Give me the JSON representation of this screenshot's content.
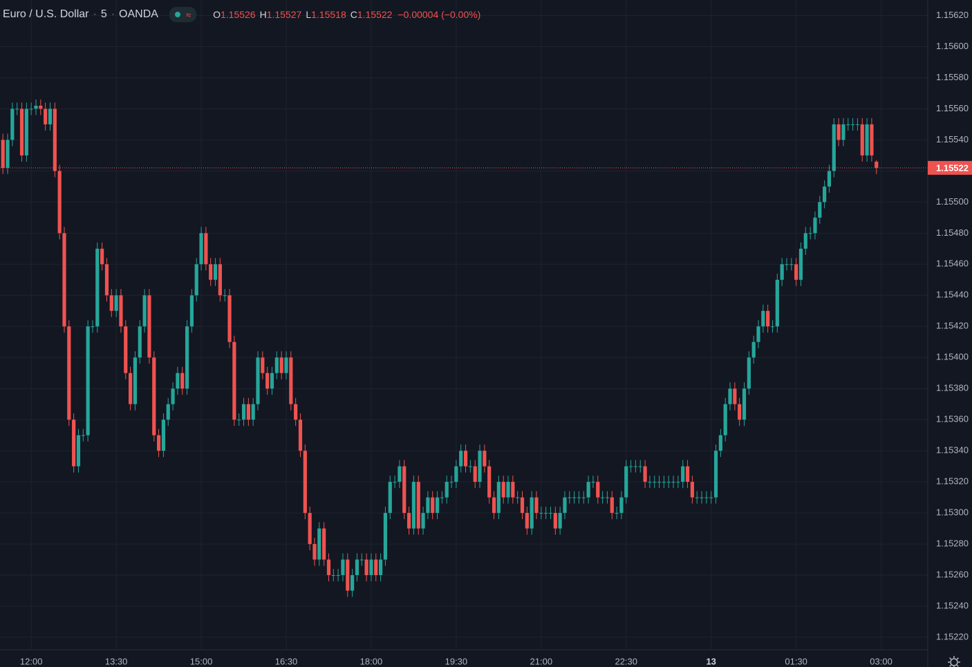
{
  "header": {
    "symbol": "Euro / U.S. Dollar",
    "interval": "5",
    "source": "OANDA",
    "open_label": "O",
    "high_label": "H",
    "low_label": "L",
    "close_label": "C",
    "change": "−0.00004 (−0.00%)"
  },
  "chart_data": {
    "type": "candlestick",
    "up_color": "#26a69a",
    "down_color": "#ef5350",
    "grid": true,
    "categories": [
      "11:30",
      "11:35",
      "11:40",
      "11:45",
      "11:50",
      "11:55",
      "12:00",
      "12:05",
      "12:10",
      "12:15",
      "12:20",
      "12:25",
      "12:30",
      "12:35",
      "12:40",
      "12:45",
      "12:50",
      "12:55",
      "13:00",
      "13:05",
      "13:10",
      "13:15",
      "13:20",
      "13:25",
      "13:30",
      "13:35",
      "13:40",
      "13:45",
      "13:50",
      "13:55",
      "14:00",
      "14:05",
      "14:10",
      "14:15",
      "14:20",
      "14:25",
      "14:30",
      "14:35",
      "14:40",
      "14:45",
      "14:50",
      "14:55",
      "15:00",
      "15:05",
      "15:10",
      "15:15",
      "15:20",
      "15:25",
      "15:30",
      "15:35",
      "15:40",
      "15:45",
      "15:50",
      "15:55",
      "16:00",
      "16:05",
      "16:10",
      "16:15",
      "16:20",
      "16:25",
      "16:30",
      "16:35",
      "16:40",
      "16:45",
      "16:50",
      "16:55",
      "17:00",
      "17:05",
      "17:10",
      "17:15",
      "17:20",
      "17:25",
      "17:30",
      "17:35",
      "17:40",
      "17:45",
      "17:50",
      "17:55",
      "18:00",
      "18:05",
      "18:10",
      "18:15",
      "18:20",
      "18:25",
      "18:30",
      "18:35",
      "18:40",
      "18:45",
      "18:50",
      "18:55",
      "19:00",
      "19:05",
      "19:10",
      "19:15",
      "19:20",
      "19:25",
      "19:30",
      "19:35",
      "19:40",
      "19:45",
      "19:50",
      "19:55",
      "20:00",
      "20:05",
      "20:10",
      "20:15",
      "20:20",
      "20:25",
      "20:30",
      "20:35",
      "20:40",
      "20:45",
      "20:50",
      "20:55",
      "21:00",
      "21:05",
      "21:10",
      "21:15",
      "21:20",
      "21:25",
      "21:30",
      "21:35",
      "21:40",
      "21:45",
      "21:50",
      "21:55",
      "22:00",
      "22:05",
      "22:10",
      "22:15",
      "22:20",
      "22:25",
      "22:30",
      "22:35",
      "22:40",
      "22:45",
      "22:50",
      "22:55",
      "23:00",
      "23:05",
      "23:10",
      "23:15",
      "23:20",
      "23:25",
      "23:30",
      "23:35",
      "23:40",
      "23:45",
      "23:50",
      "23:55",
      "00:00",
      "00:05",
      "00:10",
      "00:15",
      "00:20",
      "00:25",
      "00:30",
      "00:35",
      "00:40",
      "00:45",
      "00:50",
      "00:55",
      "01:00",
      "01:05",
      "01:10",
      "01:15",
      "01:20",
      "01:25",
      "01:30",
      "01:35",
      "01:40",
      "01:45",
      "01:50",
      "01:55",
      "02:00",
      "02:05",
      "02:10",
      "02:15",
      "02:20",
      "02:25",
      "02:30",
      "02:35",
      "02:40",
      "02:45",
      "02:50",
      "02:55"
    ],
    "open": [
      1.1554,
      1.15522,
      1.1554,
      1.1556,
      1.1556,
      1.1553,
      1.1556,
      1.1556,
      1.15562,
      1.1556,
      1.1555,
      1.1556,
      1.1552,
      1.1548,
      1.1542,
      1.1536,
      1.1533,
      1.1535,
      1.1535,
      1.1542,
      1.1542,
      1.1547,
      1.1546,
      1.1544,
      1.1543,
      1.1544,
      1.1542,
      1.1539,
      1.1537,
      1.154,
      1.1542,
      1.1544,
      1.154,
      1.1535,
      1.1534,
      1.1536,
      1.1537,
      1.1538,
      1.1539,
      1.1538,
      1.1542,
      1.1544,
      1.1546,
      1.1548,
      1.1546,
      1.1545,
      1.1546,
      1.1544,
      1.1544,
      1.1541,
      1.1536,
      1.1536,
      1.1537,
      1.1536,
      1.1537,
      1.154,
      1.1539,
      1.1538,
      1.1539,
      1.154,
      1.1539,
      1.154,
      1.1537,
      1.1536,
      1.1534,
      1.153,
      1.1528,
      1.1527,
      1.1529,
      1.1527,
      1.1526,
      1.1526,
      1.1526,
      1.1527,
      1.1525,
      1.1526,
      1.1527,
      1.1527,
      1.1526,
      1.1527,
      1.1526,
      1.1527,
      1.153,
      1.1532,
      1.1532,
      1.1533,
      1.153,
      1.1529,
      1.1532,
      1.1529,
      1.153,
      1.1531,
      1.153,
      1.1531,
      1.1531,
      1.1532,
      1.1532,
      1.1533,
      1.1534,
      1.1533,
      1.1533,
      1.1532,
      1.1534,
      1.1533,
      1.1531,
      1.153,
      1.1532,
      1.1531,
      1.1532,
      1.1531,
      1.1531,
      1.153,
      1.1529,
      1.1531,
      1.153,
      1.153,
      1.153,
      1.153,
      1.1529,
      1.153,
      1.1531,
      1.1531,
      1.1531,
      1.1531,
      1.1531,
      1.1532,
      1.1532,
      1.1531,
      1.1531,
      1.1531,
      1.153,
      1.153,
      1.1531,
      1.1533,
      1.1533,
      1.1533,
      1.1533,
      1.1532,
      1.1532,
      1.1532,
      1.1532,
      1.1532,
      1.1532,
      1.1532,
      1.1532,
      1.1533,
      1.1532,
      1.1531,
      1.1531,
      1.1531,
      1.1531,
      1.1531,
      1.1534,
      1.1535,
      1.1537,
      1.1538,
      1.1537,
      1.1536,
      1.1538,
      1.154,
      1.1541,
      1.1542,
      1.1543,
      1.1542,
      1.1542,
      1.1545,
      1.1546,
      1.1546,
      1.1546,
      1.1545,
      1.1547,
      1.1548,
      1.1548,
      1.1549,
      1.155,
      1.1551,
      1.1552,
      1.1555,
      1.1554,
      1.1555,
      1.1555,
      1.1555,
      1.1555,
      1.1553,
      1.1555,
      1.15526
    ],
    "high": [
      1.15544,
      1.15544,
      1.15564,
      1.15564,
      1.15564,
      1.15564,
      1.15564,
      1.15566,
      1.15566,
      1.15564,
      1.15564,
      1.15564,
      1.15524,
      1.15484,
      1.15424,
      1.15364,
      1.15354,
      1.15354,
      1.15424,
      1.15424,
      1.15474,
      1.15474,
      1.15464,
      1.15444,
      1.15444,
      1.15444,
      1.15424,
      1.15394,
      1.15404,
      1.15424,
      1.15444,
      1.15444,
      1.15404,
      1.15354,
      1.15364,
      1.15374,
      1.15384,
      1.15394,
      1.15394,
      1.15424,
      1.15444,
      1.15464,
      1.15484,
      1.15484,
      1.15464,
      1.15464,
      1.15464,
      1.15444,
      1.15444,
      1.15414,
      1.15364,
      1.15374,
      1.15374,
      1.15374,
      1.15404,
      1.15404,
      1.15394,
      1.15394,
      1.15404,
      1.15404,
      1.15404,
      1.15404,
      1.15374,
      1.15364,
      1.15344,
      1.15304,
      1.15284,
      1.15294,
      1.15294,
      1.15274,
      1.15264,
      1.15264,
      1.15274,
      1.15274,
      1.15264,
      1.15274,
      1.15274,
      1.15274,
      1.15274,
      1.15274,
      1.15274,
      1.15304,
      1.15324,
      1.15324,
      1.15334,
      1.15334,
      1.15304,
      1.15324,
      1.15324,
      1.15304,
      1.15314,
      1.15314,
      1.15314,
      1.15314,
      1.15324,
      1.15324,
      1.15334,
      1.15344,
      1.15344,
      1.15334,
      1.15334,
      1.15344,
      1.15344,
      1.15334,
      1.15314,
      1.15324,
      1.15324,
      1.15324,
      1.15324,
      1.15314,
      1.15314,
      1.15304,
      1.15314,
      1.15314,
      1.15304,
      1.15304,
      1.15304,
      1.15304,
      1.15304,
      1.15314,
      1.15314,
      1.15314,
      1.15314,
      1.15314,
      1.15324,
      1.15324,
      1.15324,
      1.15314,
      1.15314,
      1.15314,
      1.15304,
      1.15314,
      1.15334,
      1.15334,
      1.15334,
      1.15334,
      1.15334,
      1.15324,
      1.15324,
      1.15324,
      1.15324,
      1.15324,
      1.15324,
      1.15324,
      1.15334,
      1.15334,
      1.15324,
      1.15314,
      1.15314,
      1.15314,
      1.15314,
      1.15344,
      1.15354,
      1.15374,
      1.15384,
      1.15384,
      1.15374,
      1.15384,
      1.15404,
      1.15414,
      1.15424,
      1.15434,
      1.15434,
      1.15424,
      1.15454,
      1.15464,
      1.15464,
      1.15464,
      1.15464,
      1.15474,
      1.15484,
      1.15484,
      1.15494,
      1.15504,
      1.15514,
      1.15524,
      1.15554,
      1.15554,
      1.15554,
      1.15554,
      1.15554,
      1.15554,
      1.15554,
      1.15554,
      1.15554,
      1.15527
    ],
    "low": [
      1.15518,
      1.15518,
      1.15536,
      1.15556,
      1.15526,
      1.15526,
      1.15556,
      1.15556,
      1.15556,
      1.15546,
      1.15546,
      1.15516,
      1.15476,
      1.15416,
      1.15356,
      1.15326,
      1.15326,
      1.15346,
      1.15346,
      1.15416,
      1.15416,
      1.15456,
      1.15436,
      1.15426,
      1.15426,
      1.15416,
      1.15386,
      1.15366,
      1.15366,
      1.15396,
      1.15416,
      1.15396,
      1.15346,
      1.15336,
      1.15336,
      1.15356,
      1.15366,
      1.15376,
      1.15376,
      1.15376,
      1.15416,
      1.15436,
      1.15456,
      1.15456,
      1.15446,
      1.15446,
      1.15436,
      1.15436,
      1.15406,
      1.15356,
      1.15356,
      1.15356,
      1.15356,
      1.15356,
      1.15366,
      1.15386,
      1.15376,
      1.15376,
      1.15386,
      1.15386,
      1.15386,
      1.15366,
      1.15356,
      1.15336,
      1.15296,
      1.15276,
      1.15266,
      1.15266,
      1.15266,
      1.15256,
      1.15256,
      1.15256,
      1.15256,
      1.15246,
      1.15246,
      1.15256,
      1.15266,
      1.15256,
      1.15256,
      1.15256,
      1.15256,
      1.15266,
      1.15296,
      1.15316,
      1.15316,
      1.15296,
      1.15286,
      1.15286,
      1.15286,
      1.15286,
      1.15296,
      1.15296,
      1.15296,
      1.15306,
      1.15306,
      1.15316,
      1.15316,
      1.15326,
      1.15326,
      1.15326,
      1.15316,
      1.15316,
      1.15326,
      1.15306,
      1.15296,
      1.15296,
      1.15306,
      1.15306,
      1.15306,
      1.15306,
      1.15296,
      1.15286,
      1.15286,
      1.15296,
      1.15296,
      1.15296,
      1.15296,
      1.15286,
      1.15286,
      1.15296,
      1.15306,
      1.15306,
      1.15306,
      1.15306,
      1.15306,
      1.15316,
      1.15306,
      1.15306,
      1.15306,
      1.15296,
      1.15296,
      1.15296,
      1.15306,
      1.15326,
      1.15326,
      1.15326,
      1.15316,
      1.15316,
      1.15316,
      1.15316,
      1.15316,
      1.15316,
      1.15316,
      1.15316,
      1.15316,
      1.15316,
      1.15306,
      1.15306,
      1.15306,
      1.15306,
      1.15306,
      1.15306,
      1.15336,
      1.15346,
      1.15366,
      1.15366,
      1.15356,
      1.15356,
      1.15376,
      1.15396,
      1.15406,
      1.15416,
      1.15416,
      1.15416,
      1.15416,
      1.15446,
      1.15456,
      1.15456,
      1.15446,
      1.15446,
      1.15466,
      1.15476,
      1.15476,
      1.15486,
      1.15496,
      1.15506,
      1.15516,
      1.15536,
      1.15536,
      1.15546,
      1.15546,
      1.15546,
      1.15526,
      1.15526,
      1.15526,
      1.15518
    ],
    "close": [
      1.15522,
      1.1554,
      1.1556,
      1.1556,
      1.1553,
      1.1556,
      1.1556,
      1.15562,
      1.1556,
      1.1555,
      1.1556,
      1.1552,
      1.1548,
      1.1542,
      1.1536,
      1.1533,
      1.1535,
      1.1535,
      1.1542,
      1.1542,
      1.1547,
      1.1546,
      1.1544,
      1.1543,
      1.1544,
      1.1542,
      1.1539,
      1.1537,
      1.154,
      1.1542,
      1.1544,
      1.154,
      1.1535,
      1.1534,
      1.1536,
      1.1537,
      1.1538,
      1.1539,
      1.1538,
      1.1542,
      1.1544,
      1.1546,
      1.1548,
      1.1546,
      1.1545,
      1.1546,
      1.1544,
      1.1544,
      1.1541,
      1.1536,
      1.1536,
      1.1537,
      1.1536,
      1.1537,
      1.154,
      1.1539,
      1.1538,
      1.1539,
      1.154,
      1.1539,
      1.154,
      1.1537,
      1.1536,
      1.1534,
      1.153,
      1.1528,
      1.1527,
      1.1529,
      1.1527,
      1.1526,
      1.1526,
      1.1526,
      1.1527,
      1.1525,
      1.1526,
      1.1527,
      1.1527,
      1.1526,
      1.1527,
      1.1526,
      1.1527,
      1.153,
      1.1532,
      1.1532,
      1.1533,
      1.153,
      1.1529,
      1.1532,
      1.1529,
      1.153,
      1.1531,
      1.153,
      1.1531,
      1.1531,
      1.1532,
      1.1532,
      1.1533,
      1.1534,
      1.1533,
      1.1533,
      1.1532,
      1.1534,
      1.1533,
      1.1531,
      1.153,
      1.1532,
      1.1531,
      1.1532,
      1.1531,
      1.1531,
      1.153,
      1.1529,
      1.1531,
      1.153,
      1.153,
      1.153,
      1.153,
      1.1529,
      1.153,
      1.1531,
      1.1531,
      1.1531,
      1.1531,
      1.1531,
      1.1532,
      1.1532,
      1.1531,
      1.1531,
      1.1531,
      1.153,
      1.153,
      1.1531,
      1.1533,
      1.1533,
      1.1533,
      1.1533,
      1.1532,
      1.1532,
      1.1532,
      1.1532,
      1.1532,
      1.1532,
      1.1532,
      1.1532,
      1.1533,
      1.1532,
      1.1531,
      1.1531,
      1.1531,
      1.1531,
      1.1531,
      1.1534,
      1.1535,
      1.1537,
      1.1538,
      1.1537,
      1.1536,
      1.1538,
      1.154,
      1.1541,
      1.1542,
      1.1543,
      1.1542,
      1.1542,
      1.1545,
      1.1546,
      1.1546,
      1.1546,
      1.1545,
      1.1547,
      1.1548,
      1.1548,
      1.1549,
      1.155,
      1.1551,
      1.1552,
      1.1555,
      1.1554,
      1.1555,
      1.1555,
      1.1555,
      1.1555,
      1.1553,
      1.1555,
      1.1553,
      1.15522
    ],
    "ylim": [
      1.15212,
      1.1563
    ],
    "yticks": [
      {
        "value": 1.1522,
        "label": "1.15220"
      },
      {
        "value": 1.1524,
        "label": "1.15240"
      },
      {
        "value": 1.1526,
        "label": "1.15260"
      },
      {
        "value": 1.1528,
        "label": "1.15280"
      },
      {
        "value": 1.153,
        "label": "1.15300"
      },
      {
        "value": 1.1532,
        "label": "1.15320"
      },
      {
        "value": 1.1534,
        "label": "1.15340"
      },
      {
        "value": 1.1536,
        "label": "1.15360"
      },
      {
        "value": 1.1538,
        "label": "1.15380"
      },
      {
        "value": 1.154,
        "label": "1.15400"
      },
      {
        "value": 1.1542,
        "label": "1.15420"
      },
      {
        "value": 1.1544,
        "label": "1.15440"
      },
      {
        "value": 1.1546,
        "label": "1.15460"
      },
      {
        "value": 1.1548,
        "label": "1.15480"
      },
      {
        "value": 1.155,
        "label": "1.15500"
      },
      {
        "value": 1.1552,
        "label": "1.15520"
      },
      {
        "value": 1.1554,
        "label": "1.15540"
      },
      {
        "value": 1.1556,
        "label": "1.15560"
      },
      {
        "value": 1.1558,
        "label": "1.15580"
      },
      {
        "value": 1.156,
        "label": "1.15600"
      },
      {
        "value": 1.1562,
        "label": "1.15620"
      }
    ],
    "xticks": [
      "12:00",
      "13:30",
      "15:00",
      "16:30",
      "18:00",
      "19:30",
      "21:00",
      "22:30",
      {
        "value": "00:00",
        "label": "13"
      },
      "01:30",
      "03:00"
    ]
  }
}
